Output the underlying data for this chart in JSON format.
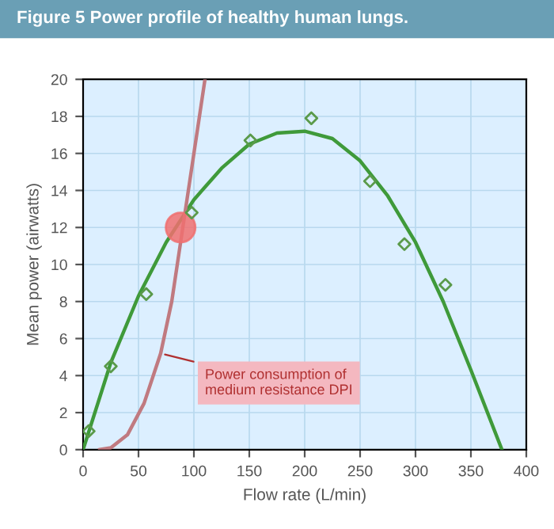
{
  "chart_data": {
    "type": "line",
    "title": "Figure 5 Power profile of healthy human lungs.",
    "xlabel": "Flow rate (L/min)",
    "ylabel": "Mean power (airwatts)",
    "series": [
      {
        "type": "scatter",
        "color": "#5a9a4a",
        "marker": "diamond",
        "x": [
          5,
          25,
          57,
          98,
          151,
          206,
          259,
          290,
          327
        ],
        "values": [
          1.0,
          4.5,
          8.4,
          12.8,
          16.7,
          17.9,
          14.5,
          11.1,
          8.9
        ]
      },
      {
        "color": "#3f9a3a",
        "x": [
          0,
          25,
          50,
          75,
          100,
          125,
          150,
          175,
          200,
          225,
          250,
          275,
          300,
          325,
          350,
          378
        ],
        "values": [
          0,
          4.7,
          8.3,
          11.2,
          13.5,
          15.2,
          16.5,
          17.1,
          17.2,
          16.8,
          15.6,
          13.7,
          11.2,
          8.0,
          4.3,
          0
        ]
      },
      {
        "color": "#c07a80",
        "x": [
          15,
          25,
          40,
          55,
          70,
          80,
          90,
          100,
          110
        ],
        "values": [
          0,
          0.1,
          0.8,
          2.5,
          5.2,
          8,
          12,
          16,
          20
        ]
      },
      {
        "type": "scatter",
        "color": "#f07070",
        "marker": "circle",
        "x": [
          88
        ],
        "values": [
          12
        ]
      }
    ],
    "annotations": [
      {
        "text": "Power consumption of\nmedium resistance DPI",
        "x": 70,
        "y": 5.2
      }
    ],
    "xlim": [
      0,
      400
    ],
    "xticks": [
      0,
      50,
      100,
      150,
      200,
      250,
      300,
      350,
      400
    ],
    "ylim": [
      0,
      20
    ],
    "yticks": [
      0,
      2,
      4,
      6,
      8,
      10,
      12,
      14,
      16,
      18,
      20
    ],
    "grid": true
  }
}
